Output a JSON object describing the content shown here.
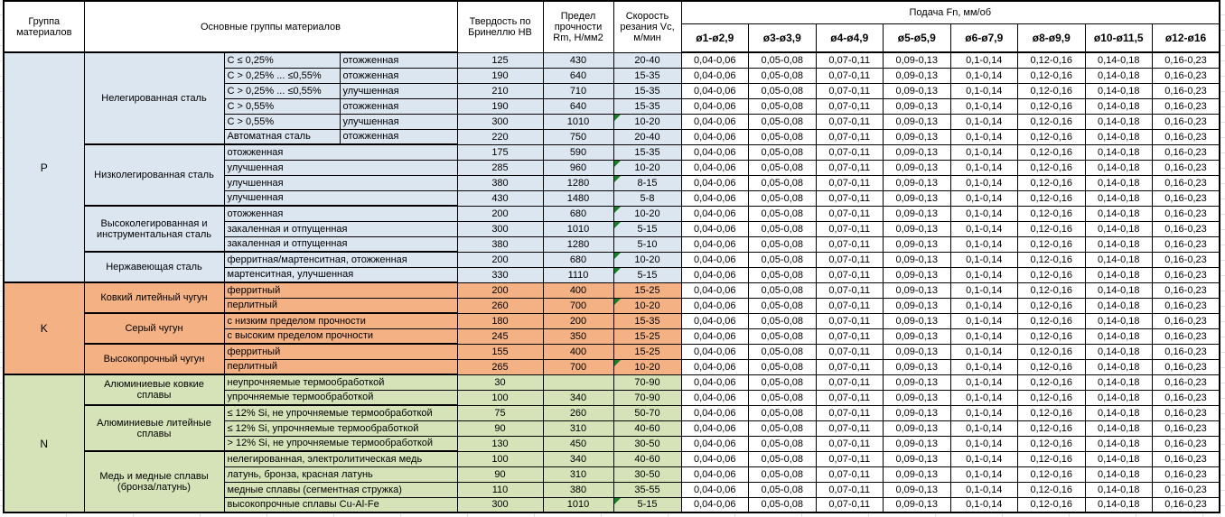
{
  "colors": {
    "P": "#dce6f1",
    "K": "#f4b183",
    "N": "#d6e3b8",
    "border": "#000000",
    "triangle": "#1b7e2a"
  },
  "header": {
    "col_group": "Группа материалов",
    "col_main": "Основные группы материалов",
    "col_hb": "Твердость по Бринеллю HB",
    "col_rm": "Предел прочности Rm, Н/мм2",
    "col_vc": "Скорость резания Vc, м/мин",
    "feed_title": "Подача Fn, мм/об",
    "feed_cols": [
      "ø1-ø2,9",
      "ø3-ø3,9",
      "ø4-ø4,9",
      "ø5-ø5,9",
      "ø6-ø7,9",
      "ø8-ø9,9",
      "ø10-ø11,5",
      "ø12-ø16"
    ]
  },
  "feed_values": [
    "0,04-0,06",
    "0,05-0,08",
    "0,07-0,11",
    "0,09-0,13",
    "0,1-0,14",
    "0,12-0,16",
    "0,14-0,18",
    "0,16-0,23"
  ],
  "sections": [
    {
      "code": "P",
      "groups": [
        {
          "name": "Нелегированная сталь",
          "rows": [
            {
              "spec": "C ≤ 0,25%",
              "state": "отожженная",
              "hb": "125",
              "rm": "430",
              "vc": "20-40",
              "flag": false
            },
            {
              "spec": "C > 0,25% ... ≤0,55%",
              "state": "отожженная",
              "hb": "190",
              "rm": "640",
              "vc": "15-35",
              "flag": false
            },
            {
              "spec": "C > 0,25% ... ≤0,55%",
              "state": "улучшенная",
              "hb": "210",
              "rm": "710",
              "vc": "15-35",
              "flag": false
            },
            {
              "spec": "C > 0,55%",
              "state": "отожженная",
              "hb": "190",
              "rm": "640",
              "vc": "15-35",
              "flag": false
            },
            {
              "spec": "C > 0,55%",
              "state": "улучшенная",
              "hb": "300",
              "rm": "1010",
              "vc": "10-20",
              "flag": true
            },
            {
              "spec": "Автоматная сталь",
              "state": "отожженная",
              "hb": "220",
              "rm": "750",
              "vc": "20-40",
              "flag": false
            }
          ]
        },
        {
          "name": "Низколегированная сталь",
          "rows": [
            {
              "desc": "отожженная",
              "hb": "175",
              "rm": "590",
              "vc": "15-35",
              "flag": false
            },
            {
              "desc": "улучшенная",
              "hb": "285",
              "rm": "960",
              "vc": "10-20",
              "flag": true
            },
            {
              "desc": "улучшенная",
              "hb": "380",
              "rm": "1280",
              "vc": "8-15",
              "flag": true
            },
            {
              "desc": "улучшенная",
              "hb": "430",
              "rm": "1480",
              "vc": "5-8",
              "flag": false
            }
          ]
        },
        {
          "name": "Высоколегированная и инструментальная сталь",
          "rows": [
            {
              "desc": "отожженная",
              "hb": "200",
              "rm": "680",
              "vc": "10-20",
              "flag": true
            },
            {
              "desc": "закаленная и отпущенная",
              "hb": "300",
              "rm": "1010",
              "vc": "5-15",
              "flag": true
            },
            {
              "desc": "закаленная и отпущенная",
              "hb": "380",
              "rm": "1280",
              "vc": "5-10",
              "flag": false
            }
          ]
        },
        {
          "name": "Нержавеющая сталь",
          "rows": [
            {
              "desc": "ферритная/мартенситная, отожженная",
              "hb": "200",
              "rm": "680",
              "vc": "10-20",
              "flag": true
            },
            {
              "desc": "мартенситная, улучшенная",
              "hb": "330",
              "rm": "1110",
              "vc": "5-15",
              "flag": true
            }
          ]
        }
      ]
    },
    {
      "code": "K",
      "groups": [
        {
          "name": "Ковкий литейный чугун",
          "rows": [
            {
              "desc": "ферритный",
              "hb": "200",
              "rm": "400",
              "vc": "15-25",
              "flag": false
            },
            {
              "desc": "перлитный",
              "hb": "260",
              "rm": "700",
              "vc": "10-20",
              "flag": true
            }
          ]
        },
        {
          "name": "Серый чугун",
          "rows": [
            {
              "desc": "с низким пределом прочности",
              "hb": "180",
              "rm": "200",
              "vc": "15-35",
              "flag": false
            },
            {
              "desc": "с высоким пределом прочности",
              "hb": "245",
              "rm": "350",
              "vc": "15-25",
              "flag": false
            }
          ]
        },
        {
          "name": "Высокопрочный чугун",
          "rows": [
            {
              "desc": "ферритный",
              "hb": "155",
              "rm": "400",
              "vc": "15-25",
              "flag": false
            },
            {
              "desc": "перлитный",
              "hb": "265",
              "rm": "700",
              "vc": "10-20",
              "flag": true
            }
          ]
        }
      ]
    },
    {
      "code": "N",
      "groups": [
        {
          "name": "Алюминиевые ковкие сплавы",
          "rows": [
            {
              "desc": "неупрочняемые термообработкой",
              "hb": "30",
              "rm": "",
              "vc": "70-90",
              "flag": false
            },
            {
              "desc": "упрочняемые термообработкой",
              "hb": "100",
              "rm": "340",
              "vc": "70-90",
              "flag": false
            }
          ]
        },
        {
          "name": "Алюминиевые литейные сплавы",
          "rows": [
            {
              "desc": "≤ 12% Si, не упрочняемые термообработкой",
              "hb": "75",
              "rm": "260",
              "vc": "50-70",
              "flag": false
            },
            {
              "desc": "≤ 12% Si, упрочняемые термообработкой",
              "hb": "90",
              "rm": "310",
              "vc": "40-60",
              "flag": false
            },
            {
              "desc": "> 12% Si, не упрочняемые термообработкой",
              "hb": "130",
              "rm": "450",
              "vc": "30-50",
              "flag": false
            }
          ]
        },
        {
          "name": "Медь и медные сплавы (бронза/латунь)",
          "rows": [
            {
              "desc": "нелегированная, электролитическая медь",
              "hb": "100",
              "rm": "340",
              "vc": "40-60",
              "flag": false
            },
            {
              "desc": "латунь, бронза, красная латунь",
              "hb": "90",
              "rm": "310",
              "vc": "30-50",
              "flag": false
            },
            {
              "desc": "медные сплавы (сегментная стружка)",
              "hb": "110",
              "rm": "380",
              "vc": "35-55",
              "flag": false
            },
            {
              "desc": "высокопрочные сплавы Cu-Al-Fe",
              "hb": "300",
              "rm": "1010",
              "vc": "5-15",
              "flag": true
            }
          ]
        }
      ]
    }
  ]
}
